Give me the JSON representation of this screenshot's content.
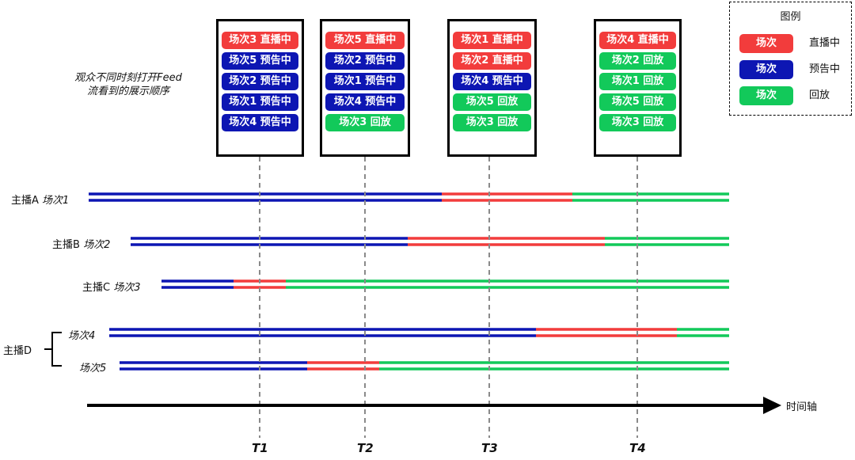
{
  "colors": {
    "live": "#f23c3c",
    "preview": "#0d16b3",
    "replay": "#12c95a"
  },
  "caption": {
    "line1": "观众不同时刻打开Feed",
    "line2": "流看到的展示顺序"
  },
  "legend": {
    "title": "图例",
    "items": [
      {
        "swatch": "场次",
        "label": "直播中",
        "status": "live"
      },
      {
        "swatch": "场次",
        "label": "预告中",
        "status": "preview"
      },
      {
        "swatch": "场次",
        "label": "回放",
        "status": "replay"
      }
    ]
  },
  "feeds": [
    {
      "time": "T1",
      "items": [
        {
          "text": "场次3 直播中",
          "status": "live"
        },
        {
          "text": "场次5 预告中",
          "status": "preview"
        },
        {
          "text": "场次2 预告中",
          "status": "preview"
        },
        {
          "text": "场次1 预告中",
          "status": "preview"
        },
        {
          "text": "场次4 预告中",
          "status": "preview"
        }
      ]
    },
    {
      "time": "T2",
      "items": [
        {
          "text": "场次5 直播中",
          "status": "live"
        },
        {
          "text": "场次2 预告中",
          "status": "preview"
        },
        {
          "text": "场次1 预告中",
          "status": "preview"
        },
        {
          "text": "场次4 预告中",
          "status": "preview"
        },
        {
          "text": "场次3 回放",
          "status": "replay"
        }
      ]
    },
    {
      "time": "T3",
      "items": [
        {
          "text": "场次1 直播中",
          "status": "live"
        },
        {
          "text": "场次2 直播中",
          "status": "live"
        },
        {
          "text": "场次4 预告中",
          "status": "preview"
        },
        {
          "text": "场次5 回放",
          "status": "replay"
        },
        {
          "text": "场次3 回放",
          "status": "replay"
        }
      ]
    },
    {
      "time": "T4",
      "items": [
        {
          "text": "场次4 直播中",
          "status": "live"
        },
        {
          "text": "场次2 回放",
          "status": "replay"
        },
        {
          "text": "场次1 回放",
          "status": "replay"
        },
        {
          "text": "场次5 回放",
          "status": "replay"
        },
        {
          "text": "场次3 回放",
          "status": "replay"
        }
      ]
    }
  ],
  "timelines": [
    {
      "host": "主播A",
      "session": "场次1"
    },
    {
      "host": "主播B",
      "session": "场次2"
    },
    {
      "host": "主播C",
      "session": "场次3"
    },
    {
      "host": "",
      "session": "场次4"
    },
    {
      "host": "",
      "session": "场次5"
    }
  ],
  "group_label": "主播D",
  "axis_label": "时间轴",
  "time_labels": [
    "T1",
    "T2",
    "T3",
    "T4"
  ]
}
